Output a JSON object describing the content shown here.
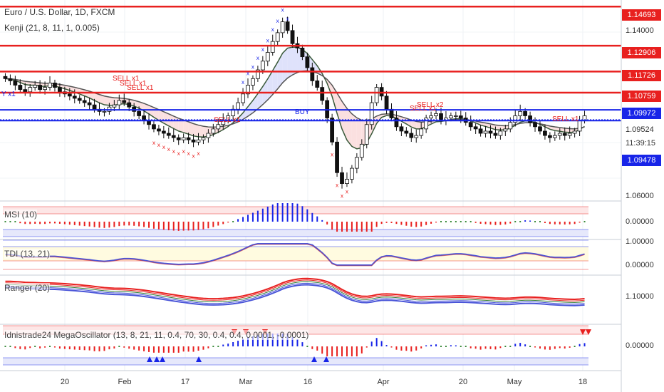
{
  "symbol_title": "Euro / U.S. Dollar, 1D, FXCM",
  "main_indicator": "Kenji (21, 8, 11, 1, 0.005)",
  "indicators": [
    {
      "name": "MSI (10)"
    },
    {
      "name": "TDI (13, 21)"
    },
    {
      "name": "Ranger (20)"
    },
    {
      "name": "Idnistrade24 MegaOscillator (13, 8, 21, 11, 0.4, 70, 30, 0.4, 0.4, 0.0001, -0.0001)"
    }
  ],
  "price_badges": [
    {
      "label": "1.14693",
      "color": "#e8201f"
    },
    {
      "label": "1.12906",
      "color": "#e8201f"
    },
    {
      "label": "1.11726",
      "color": "#e8201f"
    },
    {
      "label": "1.10759",
      "color": "#e8201f"
    },
    {
      "label": "1.09972",
      "color": "#1724e8"
    },
    {
      "label": "1.09478",
      "color": "#1724e8"
    }
  ],
  "price_ticks": [
    "1.14000",
    "1.09524",
    "1.06000"
  ],
  "countdown": "11:39:15",
  "osc_ticks": [
    {
      "panel": "MSI",
      "labels": [
        "0.00000"
      ]
    },
    {
      "panel": "TDI",
      "labels": [
        "1.00000",
        "0.00000"
      ]
    },
    {
      "panel": "Ranger",
      "labels": [
        "1.10000"
      ]
    },
    {
      "panel": "Mega",
      "labels": [
        "0.00000"
      ]
    }
  ],
  "x_ticks": [
    "20",
    "Feb",
    "17",
    "Mar",
    "16",
    "Apr",
    "20",
    "May",
    "18"
  ],
  "chart_annotations": [
    "SELL x1",
    "SELL x1",
    "SELL x1",
    "SELL x1",
    "SELL x2",
    "SELL x1",
    "SELL x1",
    "BUY",
    "Y x1"
  ],
  "colors": {
    "up": "#ffffff",
    "down": "#111111",
    "sell": "#e8201f",
    "buy": "#1724e8"
  },
  "chart_data": {
    "type": "candlestick",
    "title": "Euro / U.S. Dollar, 1D, FXCM",
    "x_labels": [
      "20",
      "Feb",
      "17",
      "Mar",
      "16",
      "Apr",
      "20",
      "May",
      "18"
    ],
    "ylim": [
      1.06,
      1.148
    ],
    "levels": [
      1.14693,
      1.12906,
      1.11726,
      1.10759,
      1.09972,
      1.09478
    ],
    "closes": [
      1.114,
      1.113,
      1.111,
      1.109,
      1.108,
      1.11,
      1.111,
      1.109,
      1.11,
      1.112,
      1.11,
      1.108,
      1.107,
      1.106,
      1.105,
      1.104,
      1.103,
      1.102,
      1.1,
      1.099,
      1.099,
      1.101,
      1.102,
      1.104,
      1.103,
      1.101,
      1.099,
      1.097,
      1.095,
      1.093,
      1.091,
      1.09,
      1.089,
      1.088,
      1.087,
      1.086,
      1.087,
      1.086,
      1.085,
      1.086,
      1.087,
      1.089,
      1.091,
      1.093,
      1.095,
      1.097,
      1.1,
      1.103,
      1.107,
      1.111,
      1.114,
      1.118,
      1.122,
      1.126,
      1.131,
      1.135,
      1.14,
      1.136,
      1.13,
      1.128,
      1.124,
      1.119,
      1.113,
      1.11,
      1.104,
      1.096,
      1.085,
      1.071,
      1.066,
      1.068,
      1.073,
      1.078,
      1.084,
      1.093,
      1.103,
      1.11,
      1.106,
      1.1,
      1.096,
      1.092,
      1.09,
      1.089,
      1.087,
      1.088,
      1.091,
      1.096,
      1.097,
      1.098,
      1.095,
      1.096,
      1.097,
      1.097,
      1.096,
      1.094,
      1.092,
      1.091,
      1.089,
      1.09,
      1.089,
      1.088,
      1.09,
      1.091,
      1.094,
      1.097,
      1.099,
      1.097,
      1.094,
      1.092,
      1.09,
      1.088,
      1.087,
      1.088,
      1.089,
      1.088,
      1.089,
      1.09,
      1.095,
      1.097
    ]
  }
}
